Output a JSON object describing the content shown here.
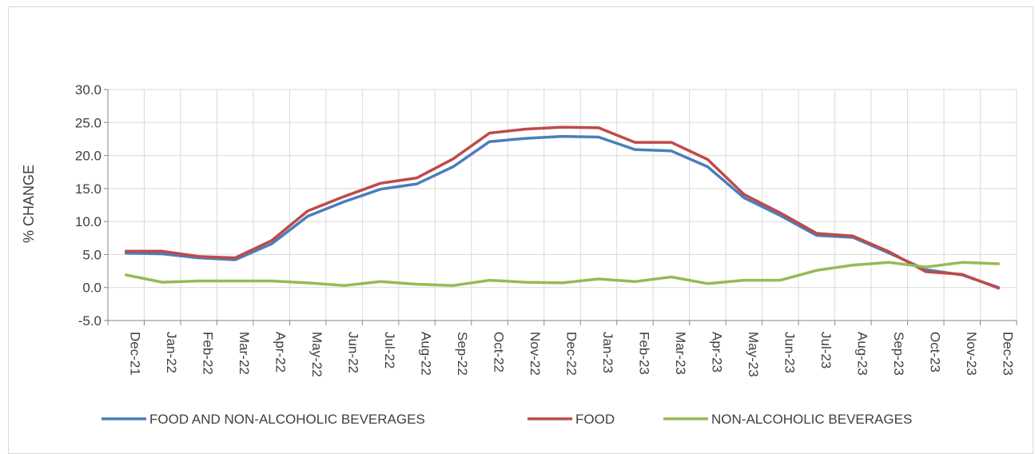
{
  "chart_data": {
    "type": "line",
    "ylabel": "% CHANGE",
    "ylim": [
      -5,
      30
    ],
    "y_ticks": [
      "30.0",
      "25.0",
      "20.0",
      "15.0",
      "10.0",
      "5.0",
      "0.0",
      "-5.0"
    ],
    "y_tick_values": [
      30,
      25,
      20,
      15,
      10,
      5,
      0,
      -5
    ],
    "negative_tick_color": "#ff0000",
    "grid": true,
    "legend_position": "bottom",
    "categories": [
      "Dec-21",
      "Jan-22",
      "Feb-22",
      "Mar-22",
      "Apr-22",
      "May-22",
      "Jun-22",
      "Jul-22",
      "Aug-22",
      "Sep-22",
      "Oct-22",
      "Nov-22",
      "Dec-22",
      "Jan-23",
      "Feb-23",
      "Mar-23",
      "Apr-23",
      "May-23",
      "Jun-23",
      "Jul-23",
      "Aug-23",
      "Sep-23",
      "Oct-23",
      "Nov-23",
      "Dec-23"
    ],
    "series": [
      {
        "name": "FOOD AND NON-ALCOHOLIC BEVERAGES",
        "color": "#4a7ebb",
        "values": [
          5.2,
          5.1,
          4.5,
          4.2,
          6.6,
          10.8,
          13.0,
          14.9,
          15.7,
          18.3,
          22.1,
          22.6,
          22.9,
          22.8,
          20.9,
          20.7,
          18.3,
          13.6,
          10.9,
          7.9,
          7.6,
          5.2,
          2.7,
          1.9,
          0.0
        ]
      },
      {
        "name": "FOOD",
        "color": "#be4b48",
        "values": [
          5.5,
          5.5,
          4.7,
          4.5,
          7.1,
          11.6,
          13.8,
          15.8,
          16.6,
          19.5,
          23.4,
          24.0,
          24.3,
          24.2,
          22.0,
          22.0,
          19.4,
          14.1,
          11.3,
          8.2,
          7.8,
          5.4,
          2.4,
          2.0,
          -0.1
        ]
      },
      {
        "name": "NON-ALCOHOLIC BEVERAGES",
        "color": "#98b954",
        "values": [
          1.9,
          0.8,
          1.0,
          1.0,
          1.0,
          0.7,
          0.3,
          0.9,
          0.5,
          0.3,
          1.1,
          0.8,
          0.7,
          1.3,
          0.9,
          1.6,
          0.6,
          1.1,
          1.1,
          2.6,
          3.4,
          3.8,
          3.1,
          3.8,
          3.6
        ]
      }
    ]
  }
}
